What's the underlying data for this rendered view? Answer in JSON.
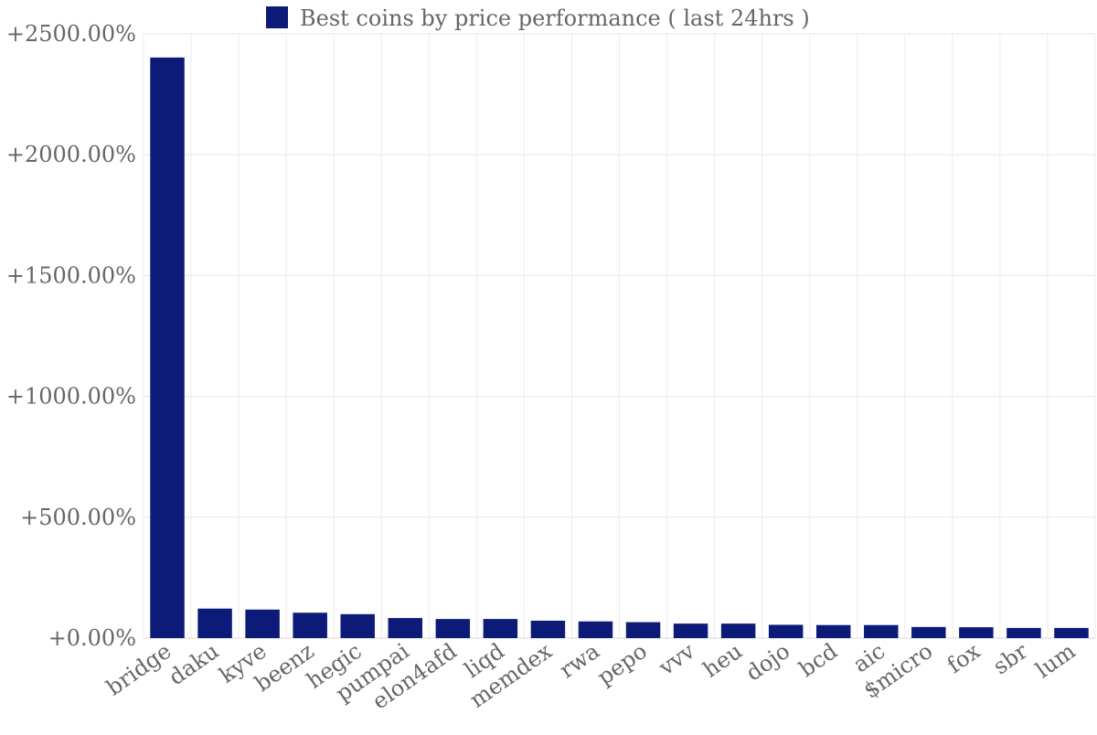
{
  "chart_data": {
    "type": "bar",
    "title": "",
    "xlabel": "",
    "ylabel": "",
    "legend": {
      "label": "Best coins by price performance ( last 24hrs )",
      "placement": "top-center"
    },
    "categories": [
      "bridge",
      "daku",
      "kyve",
      "beenz",
      "hegic",
      "pumpai",
      "elon4afd",
      "liqd",
      "memdex",
      "rwa",
      "pepo",
      "vvv",
      "heu",
      "dojo",
      "bcd",
      "aic",
      "$micro",
      "fox",
      "sbr",
      "lum"
    ],
    "series": [
      {
        "name": "Best coins by price performance ( last 24hrs )",
        "color": "#0d1b78",
        "values": [
          2402,
          122,
          118,
          105,
          99,
          83,
          79,
          79,
          72,
          69,
          66,
          60,
          60,
          55,
          54,
          54,
          46,
          45,
          42,
          42
        ]
      }
    ],
    "ylim": [
      0,
      2500
    ],
    "yticks": [
      0,
      500,
      1000,
      1500,
      2000,
      2500
    ],
    "ytick_labels": [
      "+0.00%",
      "+500.00%",
      "+1000.00%",
      "+1500.00%",
      "+2000.00%",
      "+2500.00%"
    ],
    "grid": true
  }
}
